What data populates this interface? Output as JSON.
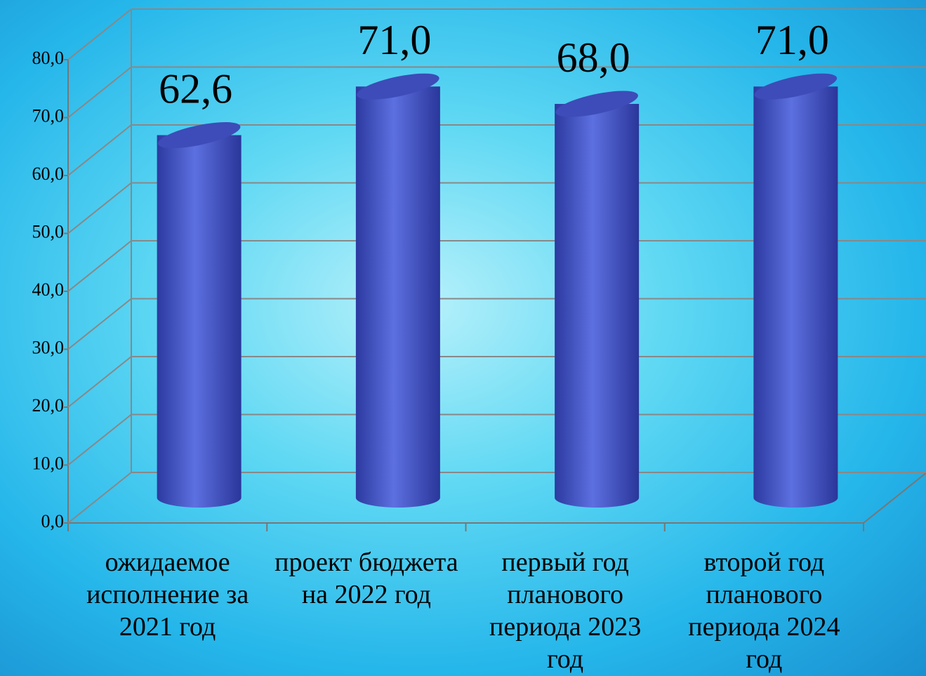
{
  "chart_data": {
    "type": "bar3d",
    "categories": [
      "ожидаемое исполнение за 2021 год",
      "проект бюджета на 2022 год",
      "первый год планового периода 2023 год",
      "второй год планового периода 2024 год"
    ],
    "values": [
      62.6,
      71.0,
      68.0,
      71.0
    ],
    "value_labels": [
      "62,6",
      "71,0",
      "68,0",
      "71,0"
    ],
    "color": "#4a5fd3",
    "ylim": [
      0,
      80
    ],
    "yticks": [
      {
        "value": 0,
        "label": "0,0"
      },
      {
        "value": 10,
        "label": "10,0"
      },
      {
        "value": 20,
        "label": "20,0"
      },
      {
        "value": 30,
        "label": "30,0"
      },
      {
        "value": 40,
        "label": "40,0"
      },
      {
        "value": 50,
        "label": "50,0"
      },
      {
        "value": 60,
        "label": "60,0"
      },
      {
        "value": 70,
        "label": "70,0"
      },
      {
        "value": 80,
        "label": "80,0"
      }
    ],
    "grid": true
  }
}
